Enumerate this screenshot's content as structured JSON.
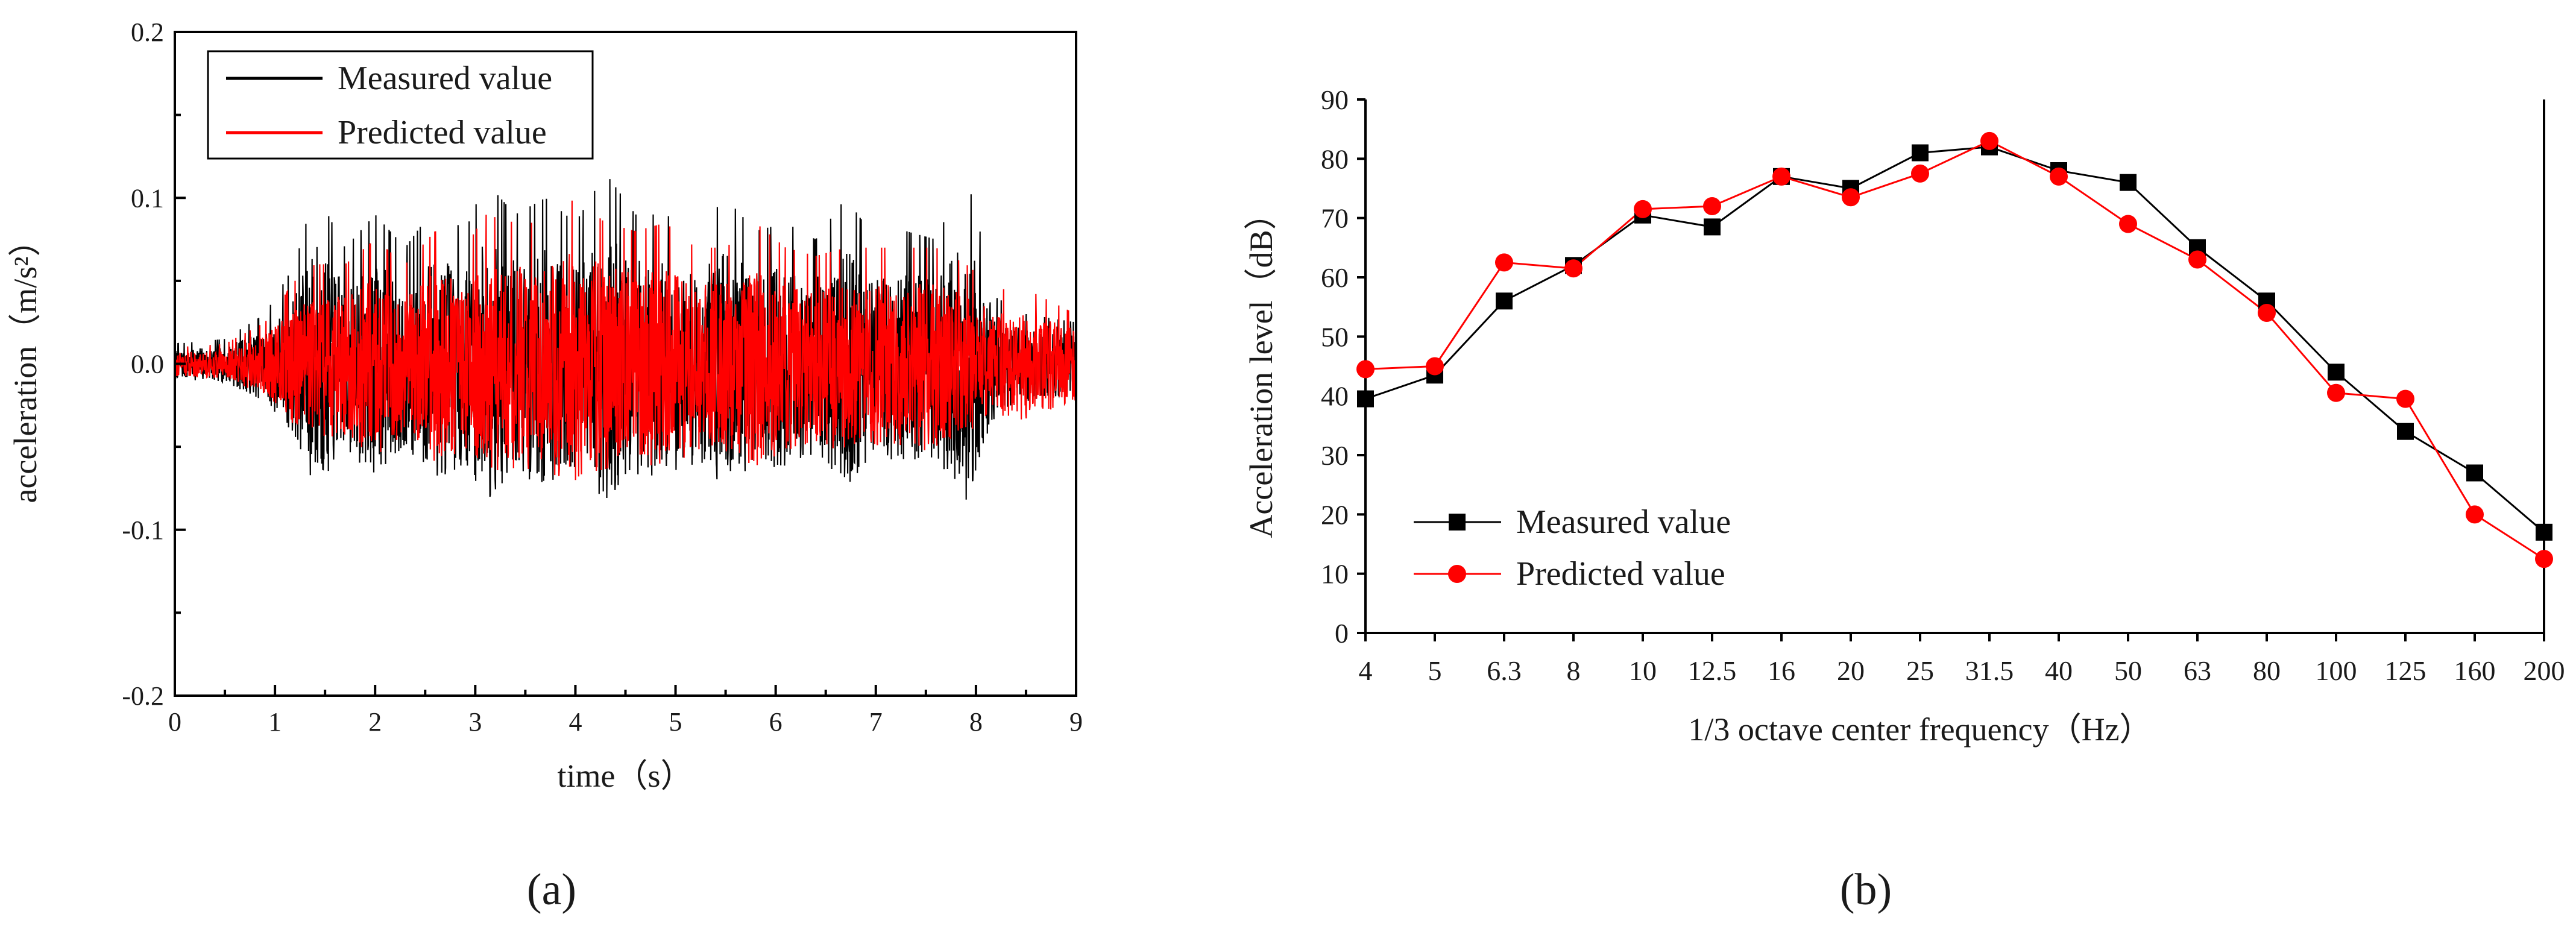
{
  "chart_data": [
    {
      "panel": "a",
      "type": "line",
      "caption": "(a)",
      "xlabel": "time（s）",
      "ylabel": "acceleration（m/s²）",
      "xlim": [
        0,
        9
      ],
      "ylim": [
        -0.2,
        0.2
      ],
      "x_ticks": [
        "0",
        "1",
        "2",
        "3",
        "4",
        "5",
        "6",
        "7",
        "8",
        "9"
      ],
      "y_ticks": [
        "0.2",
        "0.1",
        "0.0",
        "-0.1",
        "-0.2"
      ],
      "legend_position": "top-left",
      "envelope": {
        "t": [
          0,
          0.5,
          0.9,
          1.2,
          1.4,
          1.7,
          2.0,
          2.3,
          2.6,
          2.9,
          3.1,
          3.4,
          3.7,
          4.0,
          4.3,
          4.6,
          4.9,
          5.2,
          5.5,
          5.8,
          6.1,
          6.4,
          6.7,
          7.0,
          7.3,
          7.6,
          7.9,
          8.2,
          8.5,
          9.0
        ],
        "measured_amplitude": [
          0.012,
          0.015,
          0.03,
          0.06,
          0.105,
          0.07,
          0.09,
          0.07,
          0.095,
          0.08,
          0.11,
          0.09,
          0.1,
          0.085,
          0.115,
          0.09,
          0.09,
          0.08,
          0.1,
          0.08,
          0.085,
          0.075,
          0.1,
          0.075,
          0.08,
          0.075,
          0.115,
          0.04,
          0.03,
          0.025
        ],
        "predicted_amplitude": [
          0.01,
          0.012,
          0.025,
          0.05,
          0.06,
          0.06,
          0.075,
          0.06,
          0.08,
          0.07,
          0.09,
          0.085,
          0.085,
          0.1,
          0.085,
          0.08,
          0.085,
          0.07,
          0.07,
          0.085,
          0.07,
          0.065,
          0.07,
          0.07,
          0.07,
          0.07,
          0.06,
          0.045,
          0.045,
          0.03
        ]
      },
      "series": [
        {
          "name": "Measured value",
          "color": "#000000"
        },
        {
          "name": "Predicted value",
          "color": "#ff0000"
        }
      ]
    },
    {
      "panel": "b",
      "type": "line",
      "caption": "(b)",
      "xlabel": "1/3 octave center frequency（Hz）",
      "ylabel": "Acceleration level（dB）",
      "ylim": [
        0,
        90
      ],
      "y_ticks": [
        "90",
        "80",
        "70",
        "60",
        "50",
        "40",
        "30",
        "20",
        "10",
        "0"
      ],
      "categories": [
        "4",
        "5",
        "6.3",
        "8",
        "10",
        "12.5",
        "16",
        "20",
        "25",
        "31.5",
        "40",
        "50",
        "63",
        "80",
        "100",
        "125",
        "160",
        "200"
      ],
      "legend_position": "bottom-left",
      "series": [
        {
          "name": "Measured value",
          "color": "#000000",
          "marker": "square",
          "values": [
            39.5,
            43.5,
            56,
            62,
            70.5,
            68.5,
            77,
            75,
            81,
            82,
            78,
            76,
            65,
            56,
            44,
            34,
            27,
            17
          ]
        },
        {
          "name": "Predicted value",
          "color": "#ff0000",
          "marker": "circle",
          "values": [
            44.5,
            45,
            62.5,
            61.5,
            71.5,
            72,
            77,
            73.5,
            77.5,
            83,
            77,
            69,
            63,
            54,
            40.5,
            39.5,
            20,
            12.5
          ]
        }
      ]
    }
  ]
}
